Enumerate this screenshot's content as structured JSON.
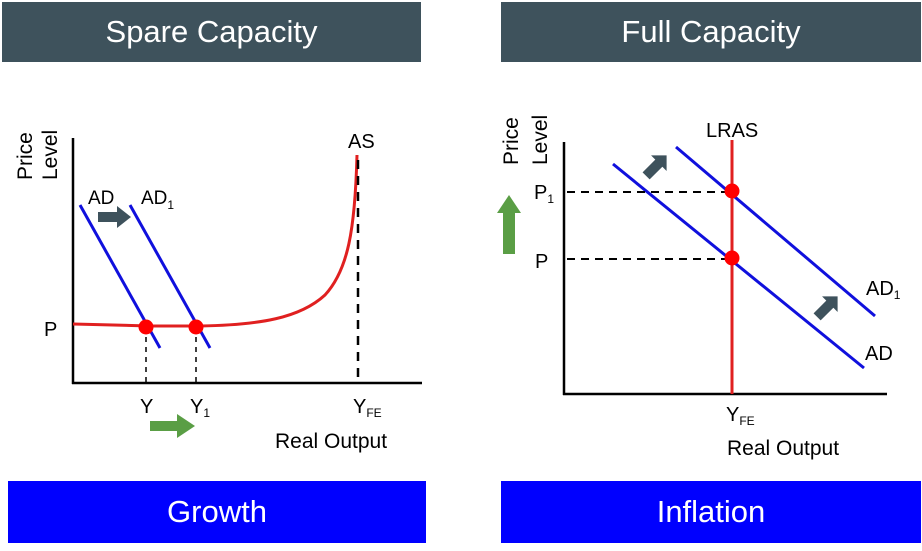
{
  "left_panel": {
    "header": "Spare Capacity",
    "footer": "Growth",
    "y_axis_label": [
      "Price",
      "Level"
    ],
    "x_axis_label": "Real Output",
    "price_label": "P",
    "ad_label": "AD",
    "ad1_label": "AD",
    "ad1_sub": "1",
    "as_label": "AS",
    "y_label": "Y",
    "y1_label": "Y",
    "y1_sub": "1",
    "yfe_label": "Y",
    "yfe_sub": "FE"
  },
  "right_panel": {
    "header": "Full Capacity",
    "footer": "Inflation",
    "y_axis_label": [
      "Price",
      "Level"
    ],
    "x_axis_label": "Real Output",
    "lras_label": "LRAS",
    "p1_label": "P",
    "p1_sub": "1",
    "p_label": "P",
    "ad_label": "AD",
    "ad1_label": "AD",
    "ad1_sub": "1",
    "yfe_label": "Y",
    "yfe_sub": "FE"
  },
  "colors": {
    "header_bg": "#3e525c",
    "footer_bg": "#0000ff",
    "ad_line": "#1010dd",
    "as_curve": "#e02020",
    "point": "#ff0000",
    "arrow_dark": "#3e525c",
    "arrow_green": "#5a9e45"
  }
}
